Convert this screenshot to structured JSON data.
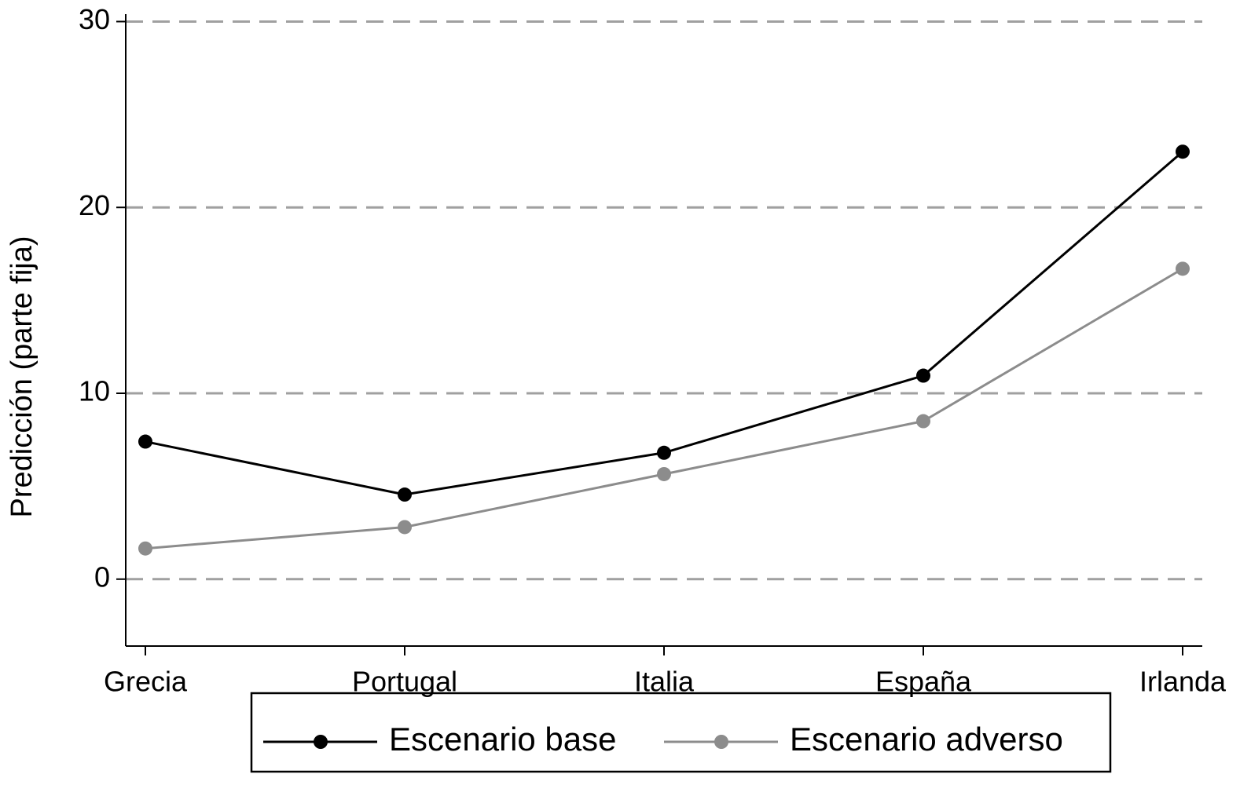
{
  "chart_data": {
    "type": "line",
    "y_label": "Predicción (parte fija)",
    "categories": [
      "Grecia",
      "Portugal",
      "Italia",
      "España",
      "Irlanda"
    ],
    "series": [
      {
        "name": "Escenario base",
        "color": "#000000",
        "values": [
          7.4,
          4.55,
          6.8,
          10.95,
          23.0
        ]
      },
      {
        "name": "Escenario adverso",
        "color": "#8c8c8c",
        "values": [
          1.65,
          2.8,
          5.65,
          8.5,
          16.7
        ]
      }
    ],
    "ylim": [
      -3.6,
      30.4
    ],
    "yticks": [
      0,
      10,
      20,
      30
    ],
    "grid": true,
    "legend": "bottom"
  }
}
